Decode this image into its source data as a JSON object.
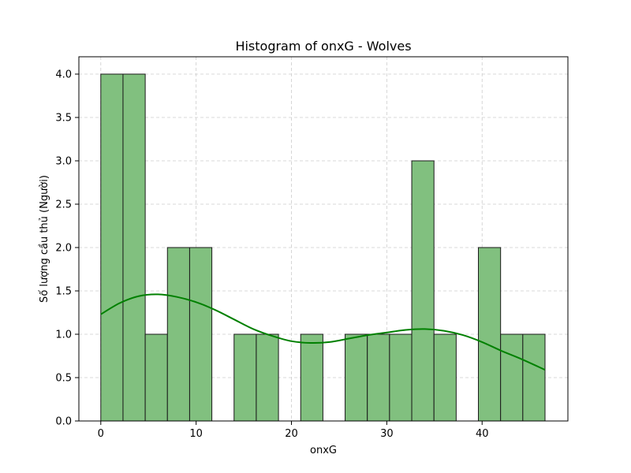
{
  "chart_data": {
    "type": "bar",
    "title": "Histogram of onxG - Wolves",
    "xlabel": "onxG",
    "ylabel": "Số lượng cầu thủ (Người)",
    "xlim": [
      -2.3,
      49.0
    ],
    "ylim": [
      0,
      4.2
    ],
    "xticks": [
      0,
      10,
      20,
      30,
      40
    ],
    "yticks": [
      0.0,
      0.5,
      1.0,
      1.5,
      2.0,
      2.5,
      3.0,
      3.5,
      4.0
    ],
    "ytick_labels": [
      "0.0",
      "0.5",
      "1.0",
      "1.5",
      "2.0",
      "2.5",
      "3.0",
      "3.5",
      "4.0"
    ],
    "grid": true,
    "bar_color": "#81c07f",
    "bar_edge_color": "#1a1a1a",
    "kde_color": "#008000",
    "bins": [
      {
        "x0": 0.0,
        "x1": 2.33,
        "count": 4
      },
      {
        "x0": 2.33,
        "x1": 4.66,
        "count": 4
      },
      {
        "x0": 4.66,
        "x1": 6.99,
        "count": 1
      },
      {
        "x0": 6.99,
        "x1": 9.32,
        "count": 2
      },
      {
        "x0": 9.32,
        "x1": 11.65,
        "count": 2
      },
      {
        "x0": 11.65,
        "x1": 13.98,
        "count": 0
      },
      {
        "x0": 13.98,
        "x1": 16.31,
        "count": 1
      },
      {
        "x0": 16.31,
        "x1": 18.64,
        "count": 1
      },
      {
        "x0": 18.64,
        "x1": 20.97,
        "count": 0
      },
      {
        "x0": 20.97,
        "x1": 23.3,
        "count": 1
      },
      {
        "x0": 23.3,
        "x1": 25.63,
        "count": 0
      },
      {
        "x0": 25.63,
        "x1": 27.96,
        "count": 1
      },
      {
        "x0": 27.96,
        "x1": 30.29,
        "count": 1
      },
      {
        "x0": 30.29,
        "x1": 32.62,
        "count": 1
      },
      {
        "x0": 32.62,
        "x1": 34.95,
        "count": 3
      },
      {
        "x0": 34.95,
        "x1": 37.28,
        "count": 1
      },
      {
        "x0": 37.28,
        "x1": 39.61,
        "count": 0
      },
      {
        "x0": 39.61,
        "x1": 41.94,
        "count": 2
      },
      {
        "x0": 41.94,
        "x1": 44.27,
        "count": 1
      },
      {
        "x0": 44.27,
        "x1": 46.6,
        "count": 1
      }
    ],
    "kde": {
      "x": [
        0,
        2,
        4,
        6,
        8,
        10,
        12,
        14,
        16,
        18,
        20,
        22,
        24,
        26,
        28,
        30,
        32,
        34,
        36,
        38,
        40,
        42,
        44,
        46.6
      ],
      "y": [
        1.23,
        1.36,
        1.44,
        1.46,
        1.43,
        1.37,
        1.28,
        1.17,
        1.06,
        0.98,
        0.92,
        0.9,
        0.91,
        0.95,
        0.99,
        1.02,
        1.05,
        1.06,
        1.04,
        0.99,
        0.91,
        0.81,
        0.72,
        0.59
      ]
    }
  }
}
